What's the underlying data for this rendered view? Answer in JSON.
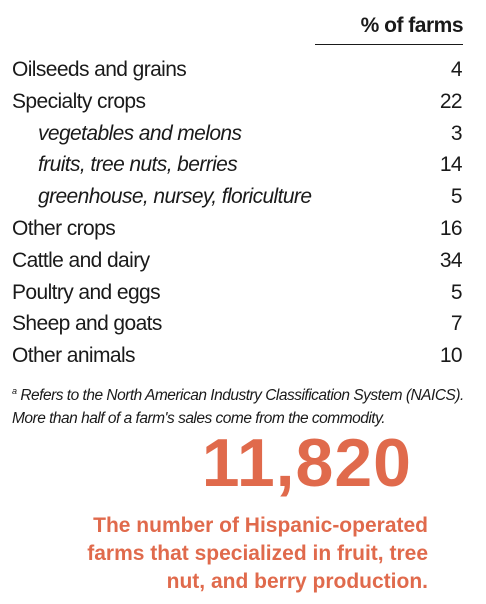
{
  "table": {
    "column_header": "% of farms",
    "rows": [
      {
        "label": "Oilseeds and grains",
        "value": "4"
      },
      {
        "label": "Specialty crops",
        "value": "22"
      },
      {
        "label": "vegetables and melons",
        "value": "3"
      },
      {
        "label": "fruits, tree nuts, berries",
        "value": "14"
      },
      {
        "label": "greenhouse, nursey, floriculture",
        "value": "5"
      },
      {
        "label": "Other crops",
        "value": "16"
      },
      {
        "label": "Cattle and dairy",
        "value": "34"
      },
      {
        "label": "Poultry and eggs",
        "value": "5"
      },
      {
        "label": "Sheep and goats",
        "value": "7"
      },
      {
        "label": "Other animals",
        "value": "10"
      }
    ]
  },
  "footnote": {
    "marker": "a",
    "line1": "Refers to the North American Industry Classification System (NAICS).",
    "line2": "More than half of a farm's sales come from the commodity."
  },
  "callout": {
    "number": "11,820",
    "caption_line1": "The number of Hispanic-operated",
    "caption_line2": "farms that specialized in fruit, tree",
    "caption_line3": "nut, and berry production."
  },
  "colors": {
    "accent": "#e06a4c",
    "text": "#1a1a1a"
  }
}
